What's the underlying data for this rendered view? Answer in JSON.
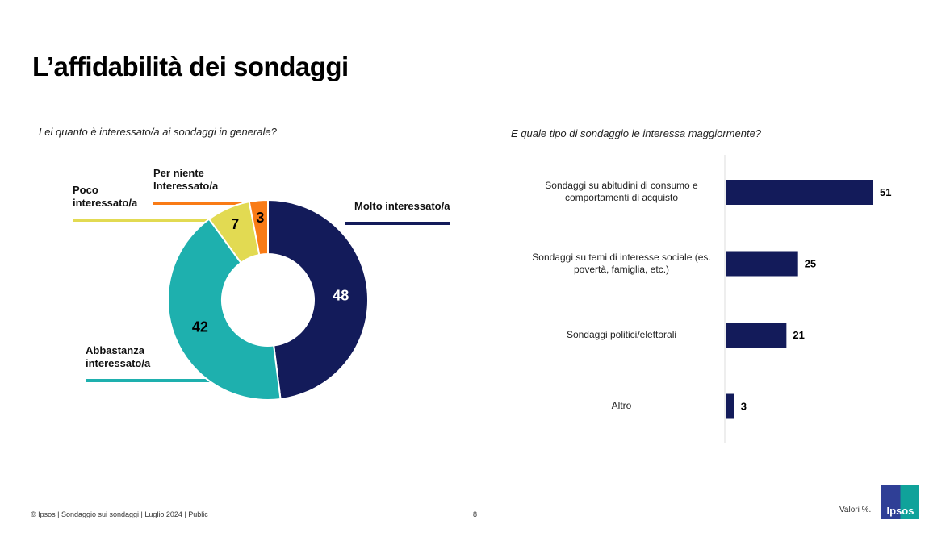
{
  "title": "L’affidabilità dei sondaggi",
  "chart_data": [
    {
      "type": "pie",
      "variant": "donut",
      "title": "Lei quanto è interessato/a ai sondaggi in generale?",
      "slices": [
        {
          "label": "Molto interessato/a",
          "value": 48,
          "color": "#131B5A"
        },
        {
          "label": "Abbastanza interessato/a",
          "value": 42,
          "color": "#1EB0AE"
        },
        {
          "label": "Poco interessato/a",
          "value": 7,
          "color": "#E2DA52"
        },
        {
          "label": "Per niente Interessato/a",
          "value": 3,
          "color": "#F97B16"
        }
      ]
    },
    {
      "type": "bar",
      "orientation": "horizontal",
      "title": "E quale tipo di sondaggio le interessa maggiormente?",
      "categories": [
        "Sondaggi su abitudini di consumo e comportamenti di acquisto",
        "Sondaggi su temi di interesse sociale (es. povertà, famiglia, etc.)",
        "Sondaggi politici/elettorali",
        "Altro"
      ],
      "values": [
        51,
        25,
        21,
        3
      ],
      "color": "#131B5A"
    }
  ],
  "footer": {
    "copyright": "© Ipsos | Sondaggio sui sondaggi | Luglio 2024 | Public",
    "page": "8",
    "note": "Valori %.",
    "logo": "Ipsos"
  }
}
